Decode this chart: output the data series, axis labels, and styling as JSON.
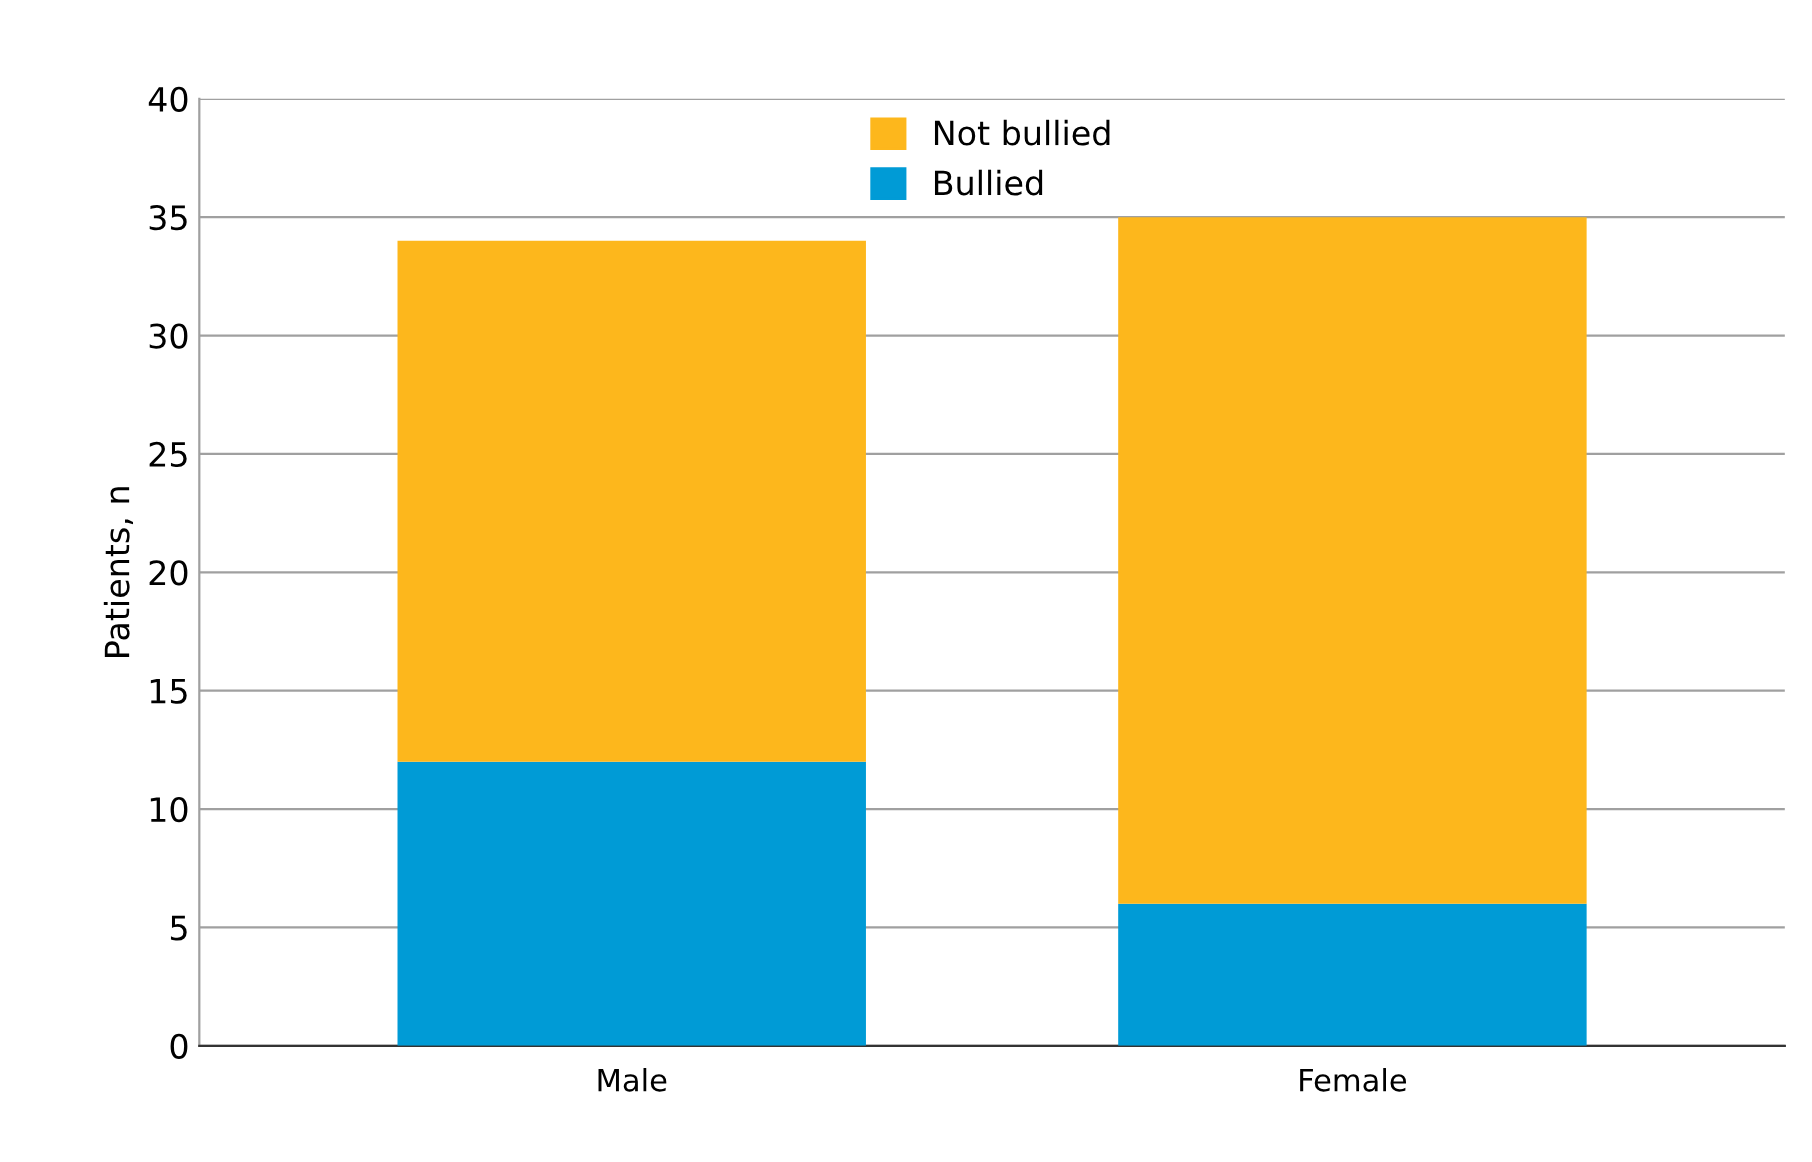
{
  "chart_data": {
    "type": "bar",
    "stacked": true,
    "ylabel": "Patients, n",
    "categories": [
      "Male",
      "Female"
    ],
    "series": [
      {
        "name": "Bullied",
        "color": "#009bd6",
        "values": [
          12,
          6
        ]
      },
      {
        "name": "Not bullied",
        "color": "#fdb71c",
        "values": [
          22,
          29
        ]
      }
    ],
    "ylim": [
      0,
      40
    ],
    "yticks": [
      0,
      5,
      10,
      15,
      20,
      25,
      30,
      35,
      40
    ],
    "grid": "y",
    "legend": "top"
  }
}
